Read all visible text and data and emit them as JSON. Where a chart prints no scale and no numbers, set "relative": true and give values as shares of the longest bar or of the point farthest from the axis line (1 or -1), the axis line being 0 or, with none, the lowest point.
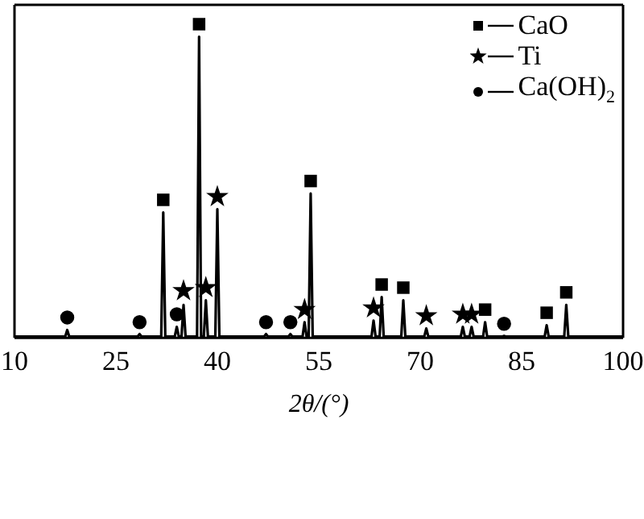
{
  "chart_data": {
    "type": "line",
    "xlabel": "2θ/(°)",
    "relative": true,
    "xlim": [
      10,
      100
    ],
    "xticks": [
      10,
      25,
      40,
      55,
      70,
      85,
      100
    ],
    "legend": "top right",
    "series": [
      {
        "color": "#000000",
        "marker": "none",
        "x": [
          10,
          17.5,
          17.8,
          18.1,
          28.2,
          28.5,
          28.8,
          31.7,
          32.0,
          32.3,
          33.7,
          34.0,
          34.3,
          34.7,
          35.0,
          35.3,
          37.0,
          37.3,
          37.6,
          38.0,
          38.3,
          38.6,
          39.7,
          40.0,
          40.3,
          46.9,
          47.2,
          47.5,
          50.5,
          50.8,
          51.1,
          52.6,
          52.9,
          53.2,
          53.5,
          53.8,
          54.1,
          62.8,
          63.1,
          63.4,
          64.0,
          64.3,
          64.6,
          67.2,
          67.5,
          67.8,
          70.6,
          70.9,
          71.2,
          76.0,
          76.3,
          76.6,
          77.3,
          77.6,
          77.9,
          79.3,
          79.6,
          79.9,
          82.1,
          82.4,
          82.7,
          88.4,
          88.7,
          89.0,
          91.3,
          91.6,
          91.9,
          100
        ],
        "values": [
          0.004,
          0.004,
          0.025,
          0.004,
          0.004,
          0.012,
          0.004,
          0.004,
          0.4,
          0.004,
          0.004,
          0.035,
          0.004,
          0.004,
          0.105,
          0.004,
          0.004,
          0.96,
          0.004,
          0.004,
          0.12,
          0.004,
          0.004,
          0.41,
          0.004,
          0.004,
          0.012,
          0.004,
          0.004,
          0.012,
          0.004,
          0.004,
          0.05,
          0.004,
          0.004,
          0.46,
          0.004,
          0.004,
          0.055,
          0.004,
          0.004,
          0.13,
          0.004,
          0.004,
          0.12,
          0.004,
          0.004,
          0.03,
          0.004,
          0.004,
          0.035,
          0.004,
          0.004,
          0.035,
          0.004,
          0.004,
          0.05,
          0.004,
          0.004,
          0.006,
          0.004,
          0.004,
          0.04,
          0.004,
          0.004,
          0.105,
          0.004,
          0.004
        ]
      },
      {
        "type": "scatter",
        "name": "CaO",
        "color": "#000000",
        "marker": "square",
        "x": [
          32.0,
          37.3,
          53.8,
          64.3,
          67.5,
          79.6,
          88.7,
          91.6
        ],
        "values": [
          0.44,
          1,
          0.5,
          0.17,
          0.16,
          0.09,
          0.08,
          0.145
        ]
      },
      {
        "type": "scatter",
        "name": "Ti",
        "color": "#000000",
        "marker": "star",
        "x": [
          35.0,
          38.3,
          40.0,
          52.9,
          63.1,
          70.9,
          76.3,
          77.6
        ],
        "values": [
          0.15,
          0.16,
          0.45,
          0.09,
          0.095,
          0.07,
          0.075,
          0.075
        ]
      },
      {
        "type": "scatter",
        "name": "Ca(OH)$_{2}$",
        "color": "#000000",
        "marker": "circle",
        "x": [
          17.8,
          28.5,
          34.0,
          47.2,
          50.8,
          82.4
        ],
        "values": [
          0.065,
          0.05,
          0.075,
          0.05,
          0.05,
          0.045
        ]
      }
    ]
  }
}
